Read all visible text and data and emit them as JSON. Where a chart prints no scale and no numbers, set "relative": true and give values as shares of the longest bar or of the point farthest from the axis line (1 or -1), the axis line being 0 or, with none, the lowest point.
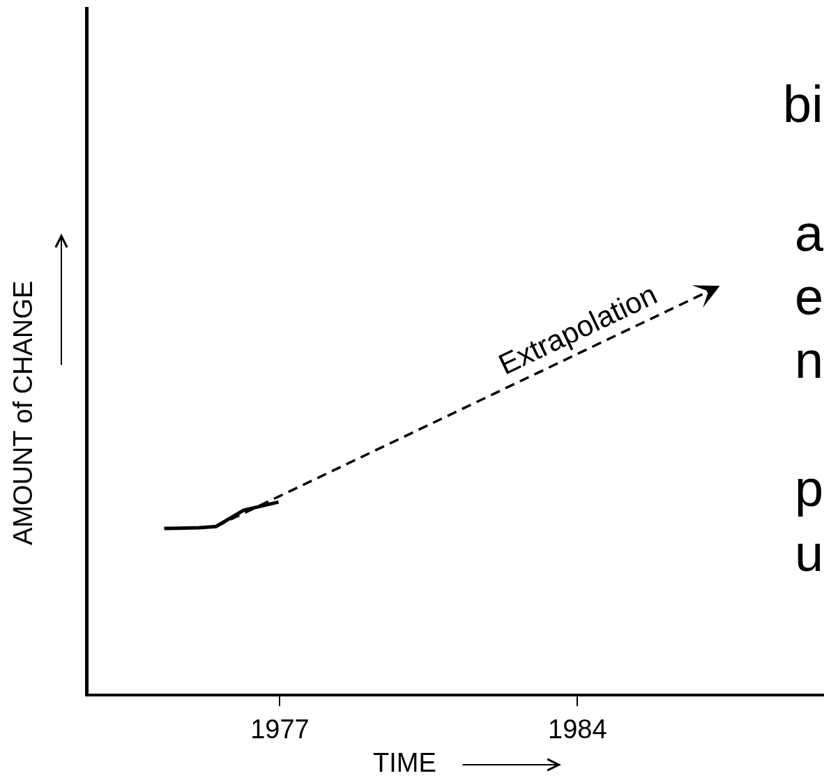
{
  "chart_data": {
    "type": "line",
    "xlabel": "TIME",
    "ylabel": "AMOUNT of CHANGE",
    "relative": true,
    "xlim": [
      1972.5,
      1989.8
    ],
    "xticks": [
      1977,
      1984
    ],
    "tick_labels": "x",
    "marker": "none",
    "series": [
      {
        "color": "#000000",
        "line_style": "solid",
        "x": [
          1974.28,
          1975.1,
          1975.5,
          1976.15,
          1976.97
        ],
        "values": [
          0.405,
          0.407,
          0.41,
          0.45,
          0.47
        ]
      },
      {
        "name": "Extrapolation",
        "color": "#000000",
        "line_style": "dashed",
        "x": [
          1975.5,
          1987.35
        ],
        "values": [
          0.41,
          1
        ]
      }
    ],
    "annotations": [
      "bi",
      "a",
      "e",
      "n",
      "p",
      "u"
    ]
  }
}
